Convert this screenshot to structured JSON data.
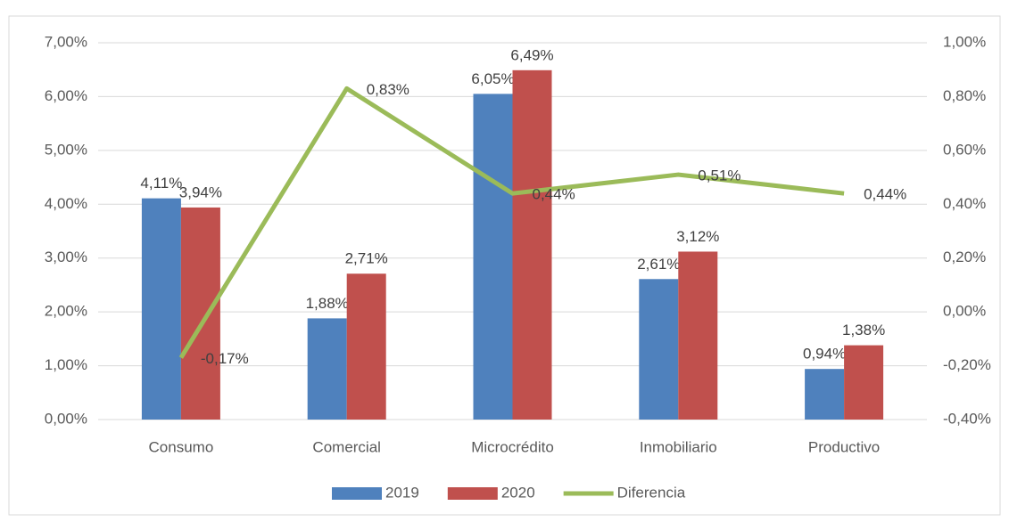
{
  "chart_data": {
    "type": "bar",
    "categories": [
      "Consumo",
      "Comercial",
      "Microcrédito",
      "Inmobiliario",
      "Productivo"
    ],
    "series": [
      {
        "name": "2019",
        "type": "bar",
        "color": "#4f81bd",
        "values": [
          4.11,
          1.88,
          6.05,
          2.61,
          0.94
        ],
        "value_labels": [
          "4,11%",
          "1,88%",
          "6,05%",
          "2,61%",
          "0,94%"
        ]
      },
      {
        "name": "2020",
        "type": "bar",
        "color": "#c0504d",
        "values": [
          3.94,
          2.71,
          6.49,
          3.12,
          1.38
        ],
        "value_labels": [
          "3,94%",
          "2,71%",
          "6,49%",
          "3,12%",
          "1,38%"
        ]
      },
      {
        "name": "Diferencia",
        "type": "line",
        "axis": "y2",
        "color": "#9bbb59",
        "values": [
          -0.17,
          0.83,
          0.44,
          0.51,
          0.44
        ],
        "value_labels": [
          "-0,17%",
          "0,83%",
          "0,44%",
          "0,51%",
          "0,44%"
        ]
      }
    ],
    "ylim": [
      0,
      7
    ],
    "yticks": [
      {
        "value": 0,
        "label": "0,00%"
      },
      {
        "value": 1,
        "label": "1,00%"
      },
      {
        "value": 2,
        "label": "2,00%"
      },
      {
        "value": 3,
        "label": "3,00%"
      },
      {
        "value": 4,
        "label": "4,00%"
      },
      {
        "value": 5,
        "label": "5,00%"
      },
      {
        "value": 6,
        "label": "6,00%"
      },
      {
        "value": 7,
        "label": "7,00%"
      }
    ],
    "y2lim": [
      -0.4,
      1.0
    ],
    "y2ticks": [
      {
        "value": -0.4,
        "label": "-0,40%"
      },
      {
        "value": -0.2,
        "label": "-0,20%"
      },
      {
        "value": 0,
        "label": "0,00%"
      },
      {
        "value": 0.2,
        "label": "0,20%"
      },
      {
        "value": 0.4,
        "label": "0,40%"
      },
      {
        "value": 0.6,
        "label": "0,60%"
      },
      {
        "value": 0.8,
        "label": "0,80%"
      },
      {
        "value": 1.0,
        "label": "1,00%"
      }
    ],
    "grid": true,
    "legend": "bottom"
  }
}
